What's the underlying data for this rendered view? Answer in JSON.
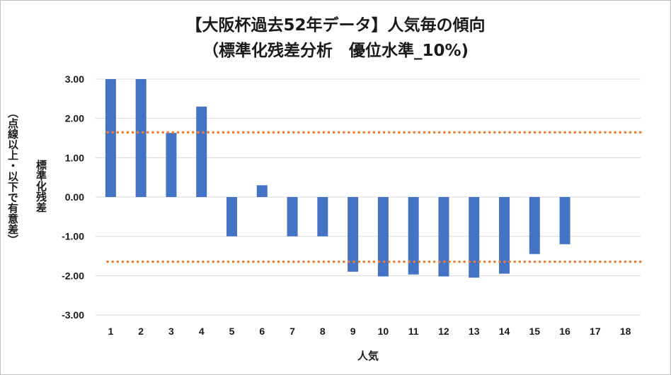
{
  "chart_data": {
    "type": "bar",
    "title": [
      "【大阪杯過去52年データ】人気毎の傾向",
      "（標準化残差分析　優位水準_10%)"
    ],
    "xlabel": "人気",
    "ylabel": [
      "標準化残差",
      "（点線以上・以下で有意差）"
    ],
    "categories": [
      "1",
      "2",
      "3",
      "4",
      "5",
      "6",
      "7",
      "8",
      "9",
      "10",
      "11",
      "12",
      "13",
      "14",
      "15",
      "16",
      "17",
      "18"
    ],
    "values": [
      3.0,
      3.0,
      1.63,
      2.3,
      -1.0,
      0.3,
      -1.0,
      -1.0,
      -1.9,
      -2.02,
      -1.97,
      -2.02,
      -2.05,
      -1.95,
      -1.45,
      -1.2,
      null,
      null
    ],
    "ylim": [
      -3.0,
      3.0
    ],
    "yticks": [
      "3.00",
      "2.00",
      "1.00",
      "0.00",
      "-1.00",
      "-2.00",
      "-3.00"
    ],
    "threshold_lines": [
      1.645,
      -1.645
    ],
    "grid": true,
    "legend": "none",
    "colors": {
      "bar": "#4472C4",
      "threshold": "#ED7D31",
      "grid": "#d9d9d9"
    }
  }
}
